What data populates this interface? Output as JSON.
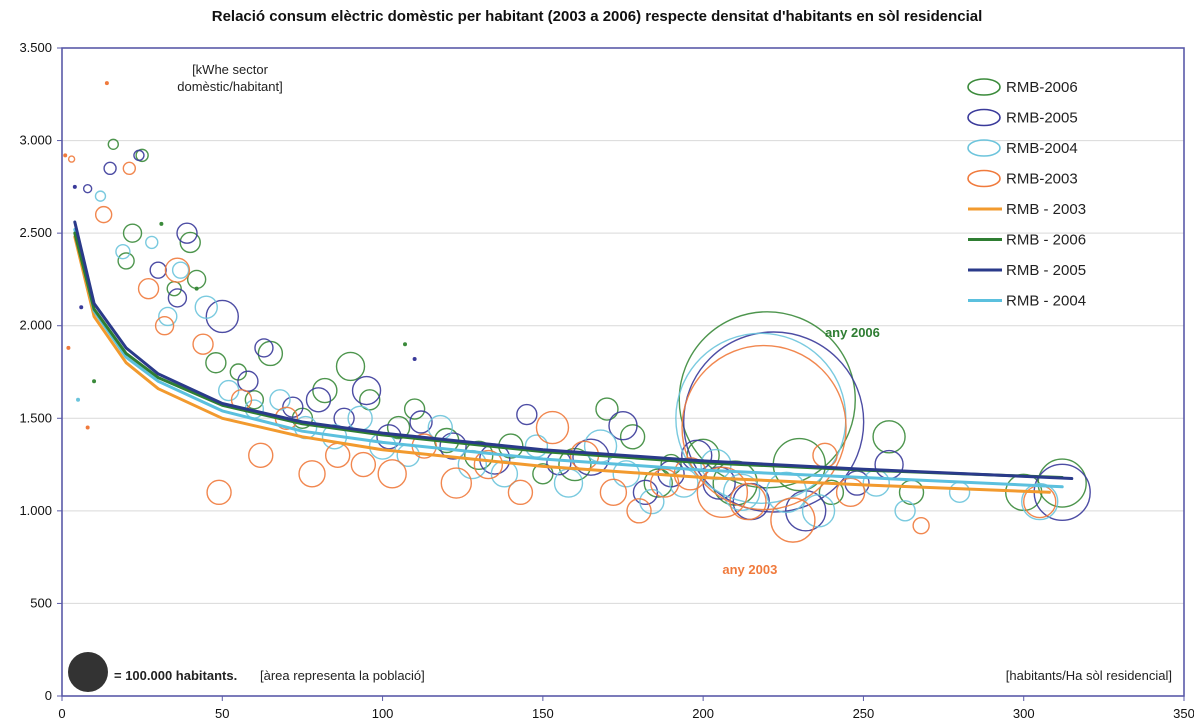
{
  "chart_data": {
    "type": "scatter",
    "title": "Relació consum elèctric domèstic per habitant (2003 a 2006) respecte densitat d'habitants en sòl residencial",
    "ylabel": "[kWhe sector domèstic/habitant]",
    "ylabel_lines": [
      "[kWhe sector",
      "domèstic/habitant]"
    ],
    "xlabel": "[habitants/Ha sòl residencial]",
    "xlim": [
      0,
      350
    ],
    "ylim": [
      0,
      3500
    ],
    "x_ticks": [
      0,
      50,
      100,
      150,
      200,
      250,
      300,
      350
    ],
    "y_ticks": [
      0,
      500,
      1000,
      1500,
      2000,
      2500,
      3000,
      3500
    ],
    "x_tick_labels": [
      "0",
      "50",
      "100",
      "150",
      "200",
      "250",
      "300",
      "350"
    ],
    "y_tick_labels": [
      "0",
      "500",
      "1.000",
      "1.500",
      "2.000",
      "2.500",
      "3.000",
      "3.500"
    ],
    "grid": "horizontal",
    "legend_position": "top-right",
    "legend": [
      {
        "label": "RMB-2006",
        "kind": "bubble",
        "color": "#3a8a3a"
      },
      {
        "label": "RMB-2005",
        "kind": "bubble",
        "color": "#3a3a9a"
      },
      {
        "label": "RMB-2004",
        "kind": "bubble",
        "color": "#6cc4dc"
      },
      {
        "label": "RMB-2003",
        "kind": "bubble",
        "color": "#f07a3c"
      },
      {
        "label": "RMB - 2003",
        "kind": "line",
        "color": "#f29a2e"
      },
      {
        "label": "RMB - 2006",
        "kind": "line",
        "color": "#2e7d32"
      },
      {
        "label": "RMB - 2005",
        "kind": "line",
        "color": "#2a3a8a"
      },
      {
        "label": "RMB - 2004",
        "kind": "line",
        "color": "#5bc0de"
      }
    ],
    "trend_lines": [
      {
        "name": "RMB - 2003",
        "color": "#f29a2e",
        "x": [
          4,
          10,
          20,
          30,
          50,
          75,
          100,
          150,
          200,
          250,
          308
        ],
        "y": [
          2480,
          2050,
          1800,
          1660,
          1500,
          1400,
          1330,
          1240,
          1180,
          1140,
          1100
        ]
      },
      {
        "name": "RMB - 2004",
        "color": "#5bc0de",
        "x": [
          4,
          10,
          20,
          30,
          50,
          75,
          100,
          150,
          200,
          250,
          312
        ],
        "y": [
          2520,
          2080,
          1830,
          1700,
          1540,
          1430,
          1370,
          1280,
          1220,
          1180,
          1130
        ]
      },
      {
        "name": "RMB - 2006",
        "color": "#2e7d32",
        "x": [
          4,
          10,
          20,
          30,
          50,
          75,
          100,
          150,
          200,
          250,
          312
        ],
        "y": [
          2500,
          2090,
          1850,
          1720,
          1570,
          1470,
          1410,
          1320,
          1260,
          1220,
          1180
        ]
      },
      {
        "name": "RMB - 2005",
        "color": "#2a3a8a",
        "x": [
          4,
          10,
          20,
          30,
          50,
          75,
          100,
          150,
          200,
          250,
          315
        ],
        "y": [
          2560,
          2120,
          1880,
          1740,
          1580,
          1480,
          1420,
          1330,
          1270,
          1225,
          1175
        ]
      }
    ],
    "bubbles": [
      {
        "series": "RMB-2006",
        "color": "#3a8a3a",
        "x": [
          16,
          22,
          25,
          20,
          35,
          40,
          42,
          48,
          55,
          60,
          65,
          75,
          82,
          90,
          96,
          105,
          110,
          120,
          130,
          140,
          150,
          160,
          170,
          178,
          186,
          190,
          200,
          210,
          220,
          230,
          240,
          258,
          265,
          300,
          312
        ],
        "y": [
          2980,
          2500,
          2920,
          2350,
          2200,
          2450,
          2250,
          1800,
          1750,
          1600,
          1850,
          1500,
          1650,
          1780,
          1600,
          1450,
          1550,
          1380,
          1300,
          1350,
          1200,
          1250,
          1550,
          1400,
          1150,
          1250,
          1300,
          1150,
          1600,
          1250,
          1100,
          1400,
          1100,
          1100,
          1150
        ],
        "r": [
          5,
          9,
          6,
          8,
          7,
          10,
          9,
          10,
          8,
          9,
          12,
          10,
          12,
          14,
          10,
          11,
          10,
          12,
          14,
          12,
          10,
          16,
          11,
          12,
          14,
          10,
          16,
          22,
          88,
          26,
          12,
          16,
          12,
          18,
          24
        ]
      },
      {
        "series": "RMB-2005",
        "color": "#3a3a9a",
        "x": [
          8,
          15,
          24,
          30,
          36,
          39,
          50,
          58,
          63,
          72,
          80,
          88,
          95,
          102,
          112,
          122,
          135,
          145,
          155,
          165,
          175,
          182,
          190,
          198,
          205,
          215,
          222,
          232,
          248,
          258,
          312
        ],
        "y": [
          2740,
          2850,
          2920,
          2300,
          2150,
          2500,
          2050,
          1700,
          1880,
          1560,
          1600,
          1500,
          1650,
          1400,
          1480,
          1350,
          1280,
          1520,
          1260,
          1290,
          1460,
          1100,
          1200,
          1300,
          1150,
          1050,
          1480,
          1000,
          1150,
          1250,
          1100
        ],
        "r": [
          4,
          6,
          5,
          8,
          9,
          10,
          16,
          10,
          9,
          10,
          12,
          10,
          14,
          12,
          11,
          13,
          15,
          10,
          12,
          18,
          14,
          12,
          13,
          15,
          16,
          18,
          90,
          20,
          12,
          14,
          28
        ]
      },
      {
        "series": "RMB-2004",
        "color": "#6cc4dc",
        "x": [
          12,
          19,
          28,
          33,
          37,
          45,
          52,
          60,
          68,
          76,
          85,
          93,
          100,
          108,
          118,
          128,
          138,
          148,
          158,
          168,
          176,
          184,
          194,
          204,
          212,
          218,
          226,
          236,
          254,
          263,
          280,
          305
        ],
        "y": [
          2700,
          2400,
          2450,
          2050,
          2300,
          2100,
          1650,
          1550,
          1600,
          1450,
          1400,
          1500,
          1350,
          1300,
          1450,
          1250,
          1200,
          1350,
          1150,
          1350,
          1200,
          1050,
          1150,
          1250,
          1100,
          1500,
          1100,
          1000,
          1150,
          1000,
          1100,
          1050
        ],
        "r": [
          5,
          7,
          6,
          9,
          8,
          11,
          10,
          9,
          10,
          11,
          12,
          12,
          13,
          11,
          12,
          14,
          13,
          11,
          14,
          16,
          13,
          12,
          14,
          15,
          18,
          85,
          20,
          16,
          13,
          10,
          10,
          18
        ]
      },
      {
        "series": "RMB-2003",
        "color": "#f07a3c",
        "x": [
          3,
          13,
          21,
          27,
          32,
          36,
          44,
          49,
          56,
          62,
          70,
          78,
          86,
          94,
          103,
          113,
          123,
          133,
          143,
          153,
          163,
          172,
          180,
          188,
          196,
          206,
          214,
          219,
          228,
          238,
          246,
          268,
          305
        ],
        "y": [
          2900,
          2600,
          2850,
          2200,
          2000,
          2300,
          1900,
          1100,
          1600,
          1300,
          1500,
          1200,
          1300,
          1250,
          1200,
          1350,
          1150,
          1250,
          1100,
          1450,
          1300,
          1100,
          1000,
          1150,
          1200,
          1100,
          1050,
          1450,
          950,
          1300,
          1100,
          920,
          1050
        ],
        "r": [
          3,
          8,
          6,
          10,
          9,
          12,
          10,
          12,
          10,
          12,
          11,
          13,
          12,
          12,
          14,
          12,
          15,
          14,
          12,
          16,
          14,
          13,
          12,
          14,
          16,
          25,
          18,
          82,
          22,
          12,
          14,
          8,
          16
        ]
      }
    ],
    "small_markers": [
      {
        "x": 14,
        "y": 3310,
        "color": "#f07a3c"
      },
      {
        "x": 1,
        "y": 2920,
        "color": "#f07a3c"
      },
      {
        "x": 4,
        "y": 2750,
        "color": "#3a3a9a"
      },
      {
        "x": 31,
        "y": 2550,
        "color": "#3a8a3a"
      },
      {
        "x": 42,
        "y": 2200,
        "color": "#3a8a3a"
      },
      {
        "x": 107,
        "y": 1900,
        "color": "#3a8a3a"
      },
      {
        "x": 110,
        "y": 1820,
        "color": "#3a3a9a"
      },
      {
        "x": 8,
        "y": 1450,
        "color": "#f07a3c"
      },
      {
        "x": 2,
        "y": 1880,
        "color": "#f07a3c"
      },
      {
        "x": 6,
        "y": 2100,
        "color": "#3a3a9a"
      },
      {
        "x": 10,
        "y": 1700,
        "color": "#3a8a3a"
      },
      {
        "x": 5,
        "y": 1600,
        "color": "#6cc4dc"
      }
    ],
    "annotations": [
      {
        "text": "any 2006",
        "color": "#2e7d32",
        "x": 238,
        "y": 1940
      },
      {
        "text": "any 2003",
        "color": "#f07a3c",
        "x": 206,
        "y": 660
      }
    ],
    "size_key": {
      "label": "= 100.000 habitants.",
      "note": "[àrea representa la població]",
      "color": "#333333"
    }
  }
}
